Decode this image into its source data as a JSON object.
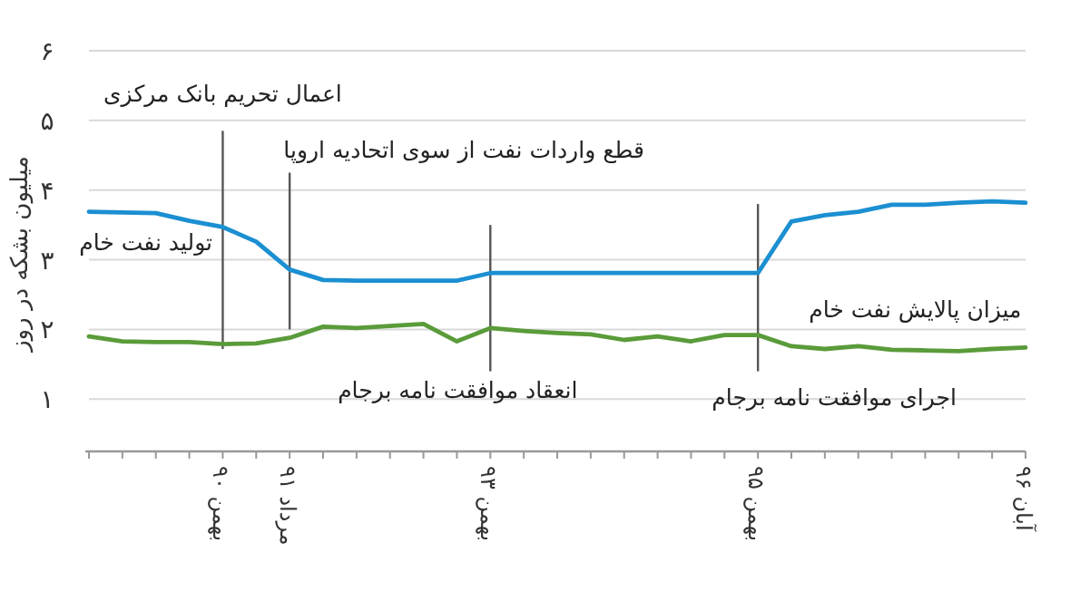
{
  "chart_data": {
    "type": "line",
    "ylabel": "میلیون بشکه در روز",
    "legend": false,
    "grid": "y",
    "marker": "none",
    "line_style": "solid",
    "ylim": [
      0.25,
      6
    ],
    "categories": [
      null,
      null,
      null,
      null,
      "بهمن ۹۰",
      null,
      "مرداد ۹۱",
      null,
      null,
      null,
      null,
      null,
      "بهمن ۹۳",
      null,
      null,
      null,
      null,
      null,
      null,
      null,
      "بهمن ۹۵",
      null,
      null,
      null,
      null,
      null,
      null,
      null,
      "آبان ۹۶"
    ],
    "yticks": [
      {
        "value": 1,
        "label": "۱"
      },
      {
        "value": 2,
        "label": "۲"
      },
      {
        "value": 3,
        "label": "۳"
      },
      {
        "value": 4,
        "label": "۴"
      },
      {
        "value": 5,
        "label": "۵"
      },
      {
        "value": 6,
        "label": "۶"
      }
    ],
    "series": [
      {
        "name": "تولید نفت خام",
        "color": "#1b8fd1",
        "values": [
          3.69,
          3.68,
          3.67,
          3.56,
          3.47,
          3.26,
          2.86,
          2.71,
          2.7,
          2.7,
          2.7,
          2.7,
          2.81,
          2.81,
          2.81,
          2.81,
          2.81,
          2.81,
          2.81,
          2.81,
          2.81,
          3.55,
          3.64,
          3.69,
          3.79,
          3.79,
          3.82,
          3.84,
          3.82
        ]
      },
      {
        "name": "میزان پالایش نفت خام",
        "color": "#5a9b3a",
        "values": [
          1.9,
          1.83,
          1.82,
          1.82,
          1.79,
          1.8,
          1.88,
          2.04,
          2.02,
          2.05,
          2.08,
          1.83,
          2.02,
          1.98,
          1.95,
          1.93,
          1.85,
          1.9,
          1.83,
          1.92,
          1.92,
          1.76,
          1.72,
          1.76,
          1.71,
          1.7,
          1.69,
          1.72,
          1.74
        ]
      }
    ],
    "ref_lines": [
      {
        "axis": "x",
        "value": "بهمن ۹۰",
        "label": "اعمال تحریم بانک مرکزی",
        "color": "#555555"
      },
      {
        "axis": "x",
        "value": "مرداد ۹۱",
        "label": "قطع واردات نفت از سوی اتحادیه اروپا",
        "color": "#555555"
      },
      {
        "axis": "x",
        "value": "بهمن ۹۳",
        "label": "انعقاد موافقت نامه برجام",
        "color": "#555555"
      },
      {
        "axis": "x",
        "value": "بهمن ۹۵",
        "label": "اجرای موافقت نامه برجام",
        "color": "#555555"
      }
    ]
  }
}
